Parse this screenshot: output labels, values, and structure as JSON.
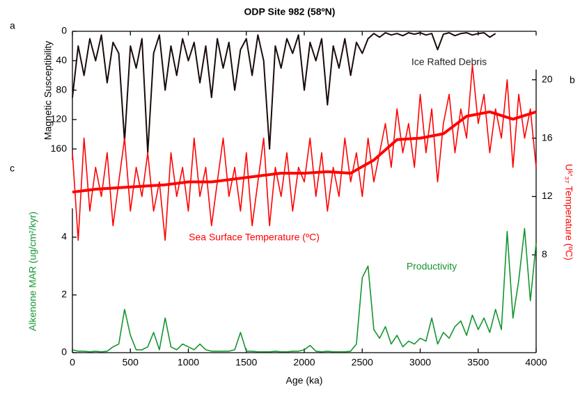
{
  "chart_data": [
    {
      "type": "line",
      "title": "ODP Site 982 (58ºN)",
      "panel_label": "a",
      "axis_side": "left",
      "invert_y": true,
      "ylabel": "Magnetic Susceptibility",
      "ylim": [
        0,
        175
      ],
      "yticks": [
        0,
        40,
        80,
        120,
        160
      ],
      "x": [
        0,
        50,
        100,
        150,
        200,
        250,
        300,
        350,
        400,
        450,
        500,
        550,
        600,
        650,
        700,
        750,
        800,
        850,
        900,
        950,
        1000,
        1050,
        1100,
        1150,
        1200,
        1250,
        1300,
        1350,
        1400,
        1450,
        1500,
        1550,
        1600,
        1650,
        1700,
        1750,
        1800,
        1850,
        1900,
        1950,
        2000,
        2050,
        2100,
        2150,
        2200,
        2250,
        2300,
        2350,
        2400,
        2450,
        2500,
        2550,
        2600,
        2650,
        2700,
        2750,
        2800,
        2850,
        2900,
        2950,
        3000,
        3050,
        3100,
        3150,
        3200,
        3250,
        3300,
        3350,
        3400,
        3450,
        3500,
        3550,
        3600,
        3650
      ],
      "series": [
        {
          "name": "Ice Rafted Debris",
          "color": "#1a0a0a",
          "values": [
            90,
            20,
            60,
            10,
            40,
            5,
            70,
            15,
            30,
            150,
            20,
            50,
            10,
            165,
            30,
            5,
            80,
            20,
            60,
            10,
            40,
            15,
            70,
            20,
            90,
            10,
            50,
            15,
            80,
            25,
            10,
            60,
            5,
            40,
            160,
            20,
            50,
            10,
            30,
            5,
            80,
            15,
            40,
            10,
            100,
            20,
            50,
            10,
            60,
            15,
            30,
            10,
            3,
            8,
            2,
            5,
            3,
            6,
            2,
            4,
            2,
            5,
            3,
            25,
            4,
            2,
            6,
            3,
            2,
            5,
            3,
            2,
            8,
            3
          ]
        }
      ]
    },
    {
      "type": "line",
      "panel_label": "b",
      "axis_side": "right",
      "ylabel": "Uᵏ′₃₇ Temperature (ºC)",
      "ylim": [
        1.3,
        20.7
      ],
      "yticks": [
        8,
        12,
        16,
        20
      ],
      "x": [
        0,
        50,
        100,
        150,
        200,
        250,
        300,
        350,
        400,
        450,
        500,
        550,
        600,
        650,
        700,
        750,
        800,
        850,
        900,
        950,
        1000,
        1050,
        1100,
        1150,
        1200,
        1250,
        1300,
        1350,
        1400,
        1450,
        1500,
        1550,
        1600,
        1650,
        1700,
        1750,
        1800,
        1850,
        1900,
        1950,
        2000,
        2050,
        2100,
        2150,
        2200,
        2250,
        2300,
        2350,
        2400,
        2450,
        2500,
        2550,
        2600,
        2650,
        2700,
        2750,
        2800,
        2850,
        2900,
        2950,
        3000,
        3050,
        3100,
        3150,
        3200,
        3250,
        3300,
        3350,
        3400,
        3450,
        3500,
        3550,
        3600,
        3650,
        3700,
        3750,
        3800,
        3850,
        3900,
        3950,
        4000
      ],
      "series": [
        {
          "name": "Sea Surface Temperature (ºC)",
          "color": "#ff0000",
          "values": [
            15,
            9,
            16,
            11,
            14,
            12,
            15,
            10,
            13,
            16,
            11,
            14,
            12,
            15,
            11,
            13,
            9,
            15,
            12,
            14,
            11,
            16,
            12,
            14,
            10,
            13,
            16,
            12,
            14,
            11,
            15,
            10,
            13,
            16,
            10,
            14,
            12,
            15,
            11,
            14,
            13,
            16,
            12,
            15,
            11,
            14,
            12,
            16,
            13,
            15,
            12,
            16,
            13,
            15,
            17,
            14,
            18,
            15,
            17,
            14,
            19,
            15,
            18,
            13,
            17,
            19,
            15,
            18,
            16,
            21,
            17,
            19,
            15,
            18,
            16,
            20,
            14,
            19,
            16,
            18,
            14
          ]
        },
        {
          "color": "#ff0000",
          "x": [
            0,
            200,
            400,
            600,
            800,
            1000,
            1200,
            1400,
            1600,
            1800,
            2000,
            2200,
            2400,
            2600,
            2800,
            3000,
            3200,
            3400,
            3600,
            3800,
            4000
          ],
          "values": [
            12.3,
            12.5,
            12.6,
            12.7,
            12.8,
            13,
            13,
            13.2,
            13.4,
            13.6,
            13.6,
            13.7,
            13.6,
            14.5,
            15.9,
            16,
            16.3,
            17.5,
            17.8,
            17.3,
            17.8
          ]
        }
      ]
    },
    {
      "type": "line",
      "panel_label": "c",
      "axis_side": "left",
      "ylabel": "Alkenone MAR (ug/cm²/kyr)",
      "ylim": [
        0,
        5
      ],
      "yticks": [
        0,
        2,
        4
      ],
      "xlabel": "Age (ka)",
      "xlim": [
        0,
        4000
      ],
      "xticks": [
        0,
        500,
        1000,
        1500,
        2000,
        2500,
        3000,
        3500,
        4000
      ],
      "x": [
        0,
        50,
        100,
        150,
        200,
        250,
        300,
        350,
        400,
        450,
        500,
        550,
        600,
        650,
        700,
        750,
        800,
        850,
        900,
        950,
        1000,
        1050,
        1100,
        1150,
        1200,
        1250,
        1300,
        1350,
        1400,
        1450,
        1500,
        1550,
        1600,
        1650,
        1700,
        1750,
        1800,
        1850,
        1900,
        1950,
        2000,
        2050,
        2100,
        2150,
        2200,
        2250,
        2300,
        2350,
        2400,
        2450,
        2500,
        2550,
        2600,
        2650,
        2700,
        2750,
        2800,
        2850,
        2900,
        2950,
        3000,
        3050,
        3100,
        3150,
        3200,
        3250,
        3300,
        3350,
        3400,
        3450,
        3500,
        3550,
        3600,
        3650,
        3700,
        3750,
        3800,
        3850,
        3900,
        3950,
        4000
      ],
      "series": [
        {
          "name": "Productivity",
          "color": "#13952f",
          "values": [
            0.1,
            0.05,
            0.05,
            0.03,
            0.05,
            0.03,
            0.05,
            0.2,
            0.3,
            1.5,
            0.6,
            0.1,
            0.1,
            0.2,
            0.7,
            0.1,
            1.2,
            0.2,
            0.1,
            0.3,
            0.2,
            0.1,
            0.3,
            0.1,
            0.05,
            0.05,
            0.05,
            0.05,
            0.1,
            0.7,
            0.05,
            0.05,
            0.03,
            0.03,
            0.03,
            0.05,
            0.03,
            0.03,
            0.05,
            0.05,
            0.1,
            0.25,
            0.05,
            0.03,
            0.05,
            0.03,
            0.03,
            0.03,
            0.05,
            0.3,
            2.6,
            3,
            0.8,
            0.5,
            0.9,
            0.3,
            0.6,
            0.2,
            0.4,
            0.3,
            0.5,
            0.4,
            1.2,
            0.3,
            0.7,
            0.5,
            0.9,
            1.1,
            0.6,
            1.3,
            0.8,
            1.2,
            0.7,
            1.5,
            0.8,
            4.2,
            1.2,
            2.5,
            4.3,
            1.8,
            3.8
          ]
        }
      ]
    }
  ]
}
